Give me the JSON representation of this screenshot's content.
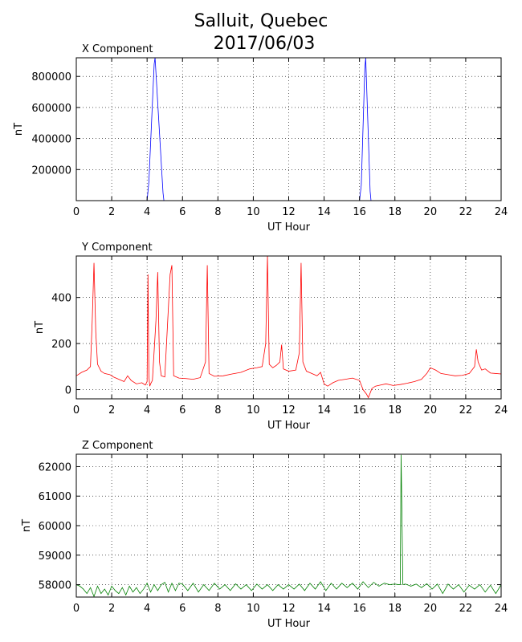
{
  "figure": {
    "title_line1": "Salluit, Quebec",
    "title_line2": "2017/06/03"
  },
  "chart_data": [
    {
      "type": "line",
      "title": "X Component",
      "xlabel": "UT Hour",
      "ylabel": "nT",
      "xlim": [
        0,
        24
      ],
      "ylim": [
        0,
        920000
      ],
      "xticks": [
        0,
        2,
        4,
        6,
        8,
        10,
        12,
        14,
        16,
        18,
        20,
        22,
        24
      ],
      "yticks": [
        200000,
        400000,
        600000,
        800000
      ],
      "grid": true,
      "color": "#0000ff",
      "series": [
        {
          "x": [
            0,
            1,
            2,
            3,
            4.0,
            4.1,
            4.4,
            4.45,
            4.9,
            4.95,
            5.0,
            6,
            8,
            10,
            12,
            14,
            16.0,
            16.1,
            16.3,
            16.35,
            16.6,
            16.65,
            16.7,
            18,
            20,
            22,
            24
          ],
          "y": [
            0,
            0,
            0,
            0,
            0,
            120000,
            880000,
            920000,
            50000,
            0,
            0,
            0,
            0,
            0,
            0,
            0,
            0,
            100000,
            850000,
            920000,
            60000,
            0,
            0,
            0,
            0,
            0,
            0
          ]
        }
      ]
    },
    {
      "type": "line",
      "title": "Y Component",
      "xlabel": "UT Hour",
      "ylabel": "nT",
      "xlim": [
        0,
        24
      ],
      "ylim": [
        -40,
        580
      ],
      "xticks": [
        0,
        2,
        4,
        6,
        8,
        10,
        12,
        14,
        16,
        18,
        20,
        22,
        24
      ],
      "yticks": [
        0,
        200,
        400
      ],
      "grid": true,
      "color": "#ff0000",
      "series": [
        {
          "x": [
            0,
            0.3,
            0.6,
            0.8,
            0.9,
            1.0,
            1.1,
            1.2,
            1.4,
            1.6,
            1.9,
            2.1,
            2.4,
            2.7,
            2.9,
            3.1,
            3.4,
            3.7,
            3.9,
            4.0,
            4.05,
            4.1,
            4.15,
            4.2,
            4.3,
            4.5,
            4.6,
            4.7,
            4.8,
            5.0,
            5.3,
            5.4,
            5.5,
            5.8,
            6.2,
            6.6,
            7.0,
            7.3,
            7.4,
            7.5,
            7.8,
            8.3,
            8.8,
            9.3,
            9.8,
            10.2,
            10.5,
            10.7,
            10.8,
            10.9,
            11.1,
            11.3,
            11.5,
            11.6,
            11.7,
            12.0,
            12.4,
            12.6,
            12.7,
            12.8,
            13.0,
            13.3,
            13.6,
            13.8,
            14.0,
            14.2,
            14.5,
            14.8,
            15.2,
            15.6,
            16.0,
            16.2,
            16.4,
            16.5,
            16.7,
            16.9,
            17.2,
            17.5,
            17.9,
            18.3,
            18.7,
            19.1,
            19.5,
            19.8,
            20.0,
            20.3,
            20.6,
            21.0,
            21.4,
            21.8,
            22.2,
            22.5,
            22.6,
            22.7,
            22.9,
            23.1,
            23.4,
            23.7,
            24.0
          ],
          "y": [
            60,
            75,
            85,
            100,
            300,
            550,
            250,
            110,
            80,
            70,
            65,
            55,
            45,
            35,
            60,
            40,
            25,
            30,
            20,
            35,
            500,
            60,
            15,
            25,
            40,
            300,
            510,
            120,
            60,
            55,
            500,
            540,
            60,
            50,
            48,
            45,
            52,
            120,
            540,
            70,
            58,
            60,
            68,
            75,
            90,
            95,
            100,
            200,
            580,
            110,
            95,
            105,
            120,
            195,
            90,
            80,
            85,
            160,
            550,
            120,
            80,
            70,
            60,
            75,
            25,
            15,
            30,
            40,
            45,
            50,
            40,
            0,
            -20,
            -35,
            5,
            15,
            20,
            25,
            18,
            22,
            28,
            35,
            45,
            70,
            95,
            85,
            70,
            65,
            60,
            62,
            70,
            100,
            175,
            120,
            85,
            90,
            72,
            70,
            68
          ]
        }
      ]
    },
    {
      "type": "line",
      "title": "Z Component",
      "xlabel": "UT Hour",
      "ylabel": "nT",
      "xlim": [
        0,
        24
      ],
      "ylim": [
        57580,
        62420
      ],
      "xticks": [
        0,
        2,
        4,
        6,
        8,
        10,
        12,
        14,
        16,
        18,
        20,
        22,
        24
      ],
      "yticks": [
        58000,
        59000,
        60000,
        61000,
        62000
      ],
      "grid": true,
      "color": "#008000",
      "series": [
        {
          "x": [
            0,
            0.2,
            0.4,
            0.6,
            0.8,
            1.0,
            1.2,
            1.4,
            1.6,
            1.8,
            2.0,
            2.2,
            2.4,
            2.6,
            2.8,
            3.0,
            3.2,
            3.4,
            3.6,
            3.8,
            4.0,
            4.2,
            4.4,
            4.6,
            4.8,
            5.0,
            5.2,
            5.4,
            5.6,
            5.8,
            6.0,
            6.3,
            6.6,
            6.9,
            7.2,
            7.5,
            7.8,
            8.1,
            8.4,
            8.7,
            9.0,
            9.3,
            9.6,
            9.9,
            10.2,
            10.5,
            10.8,
            11.1,
            11.4,
            11.7,
            12.0,
            12.3,
            12.6,
            12.9,
            13.2,
            13.5,
            13.8,
            14.1,
            14.4,
            14.7,
            15.0,
            15.3,
            15.6,
            15.9,
            16.2,
            16.5,
            16.8,
            17.1,
            17.4,
            17.7,
            18.0,
            18.2,
            18.3,
            18.35,
            18.45,
            18.6,
            18.9,
            19.2,
            19.5,
            19.8,
            20.1,
            20.4,
            20.7,
            21.0,
            21.3,
            21.6,
            21.9,
            22.2,
            22.5,
            22.8,
            23.1,
            23.4,
            23.7,
            24.0
          ],
          "y": [
            58000,
            57950,
            57850,
            57700,
            57900,
            57600,
            57950,
            57700,
            57850,
            57650,
            57950,
            57800,
            57700,
            57900,
            57650,
            57950,
            57750,
            57900,
            57700,
            57850,
            58050,
            57750,
            58000,
            57800,
            58000,
            58080,
            57750,
            58050,
            57800,
            58050,
            58020,
            57800,
            58050,
            57750,
            58000,
            57800,
            58050,
            57850,
            58000,
            57800,
            58030,
            57850,
            58000,
            57800,
            58020,
            57850,
            58000,
            57800,
            58000,
            57850,
            58000,
            57850,
            58020,
            57800,
            58050,
            57850,
            58100,
            57800,
            58050,
            57850,
            58050,
            57900,
            58050,
            57850,
            58100,
            57900,
            58080,
            57950,
            58050,
            58000,
            58020,
            58000,
            58000,
            62400,
            58000,
            58020,
            57950,
            58020,
            57900,
            58030,
            57850,
            58020,
            57700,
            58020,
            57850,
            58000,
            57750,
            57980,
            57850,
            58000,
            57750,
            57980,
            57700,
            58000
          ]
        }
      ]
    }
  ]
}
